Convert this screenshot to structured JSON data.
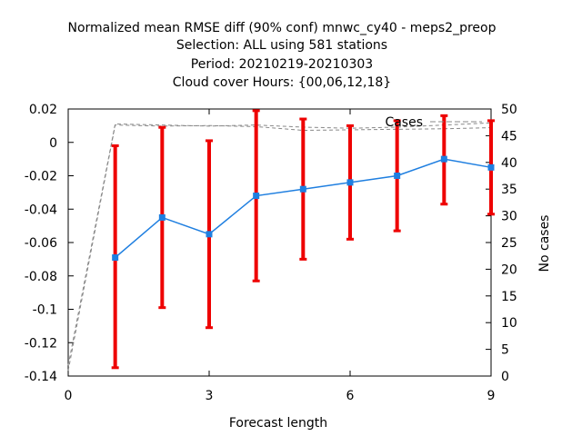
{
  "chart_data": {
    "type": "line",
    "title_lines": [
      "Normalized mean RMSE diff (90% conf) mnwc_cy40 - meps2_preop",
      "Selection: ALL using   581 stations",
      "Period: 20210219-20210303",
      "Cloud cover   Hours: {00,06,12,18}"
    ],
    "xlabel": "Forecast length",
    "ylabel": "",
    "y2label": "No cases",
    "xlim": [
      0,
      9
    ],
    "ylim": [
      -0.14,
      0.02
    ],
    "y2lim": [
      0,
      50
    ],
    "xticks": [
      0,
      3,
      6,
      9
    ],
    "yticks": [
      -0.14,
      -0.12,
      -0.1,
      -0.08,
      -0.06,
      -0.04,
      -0.02,
      0,
      0.02
    ],
    "y2ticks": [
      0,
      5,
      10,
      15,
      20,
      25,
      30,
      35,
      40,
      45,
      50
    ],
    "grid": false,
    "legend": {
      "position": "top-right",
      "label": "Cases"
    },
    "mean_series": {
      "color": "#1f7fe0",
      "x": [
        1,
        2,
        3,
        4,
        5,
        6,
        7,
        8,
        9
      ],
      "y": [
        -0.069,
        -0.045,
        -0.055,
        -0.032,
        -0.028,
        -0.024,
        -0.02,
        -0.01,
        -0.015
      ]
    },
    "error_bars": {
      "color": "#ee0000",
      "x": [
        1,
        2,
        3,
        4,
        5,
        6,
        7,
        8,
        9
      ],
      "low": [
        -0.135,
        -0.099,
        -0.111,
        -0.083,
        -0.07,
        -0.058,
        -0.053,
        -0.037,
        -0.043
      ],
      "high": [
        -0.002,
        0.009,
        0.001,
        0.019,
        0.014,
        0.01,
        0.013,
        0.016,
        0.013
      ]
    },
    "cases_series": [
      {
        "color": "#888888",
        "x": [
          0,
          1,
          2,
          3,
          4,
          5,
          6,
          7,
          8,
          9
        ],
        "y": [
          2,
          47.2,
          47.0,
          46.8,
          47.0,
          46.6,
          46.4,
          46.6,
          47.0,
          47.4
        ]
      },
      {
        "color": "#888888",
        "x": [
          0,
          1,
          2,
          3,
          4,
          5,
          6,
          7,
          8,
          9
        ],
        "y": [
          1,
          47.0,
          46.8,
          46.9,
          46.7,
          46.0,
          46.1,
          46.2,
          46.3,
          46.5
        ]
      }
    ]
  }
}
